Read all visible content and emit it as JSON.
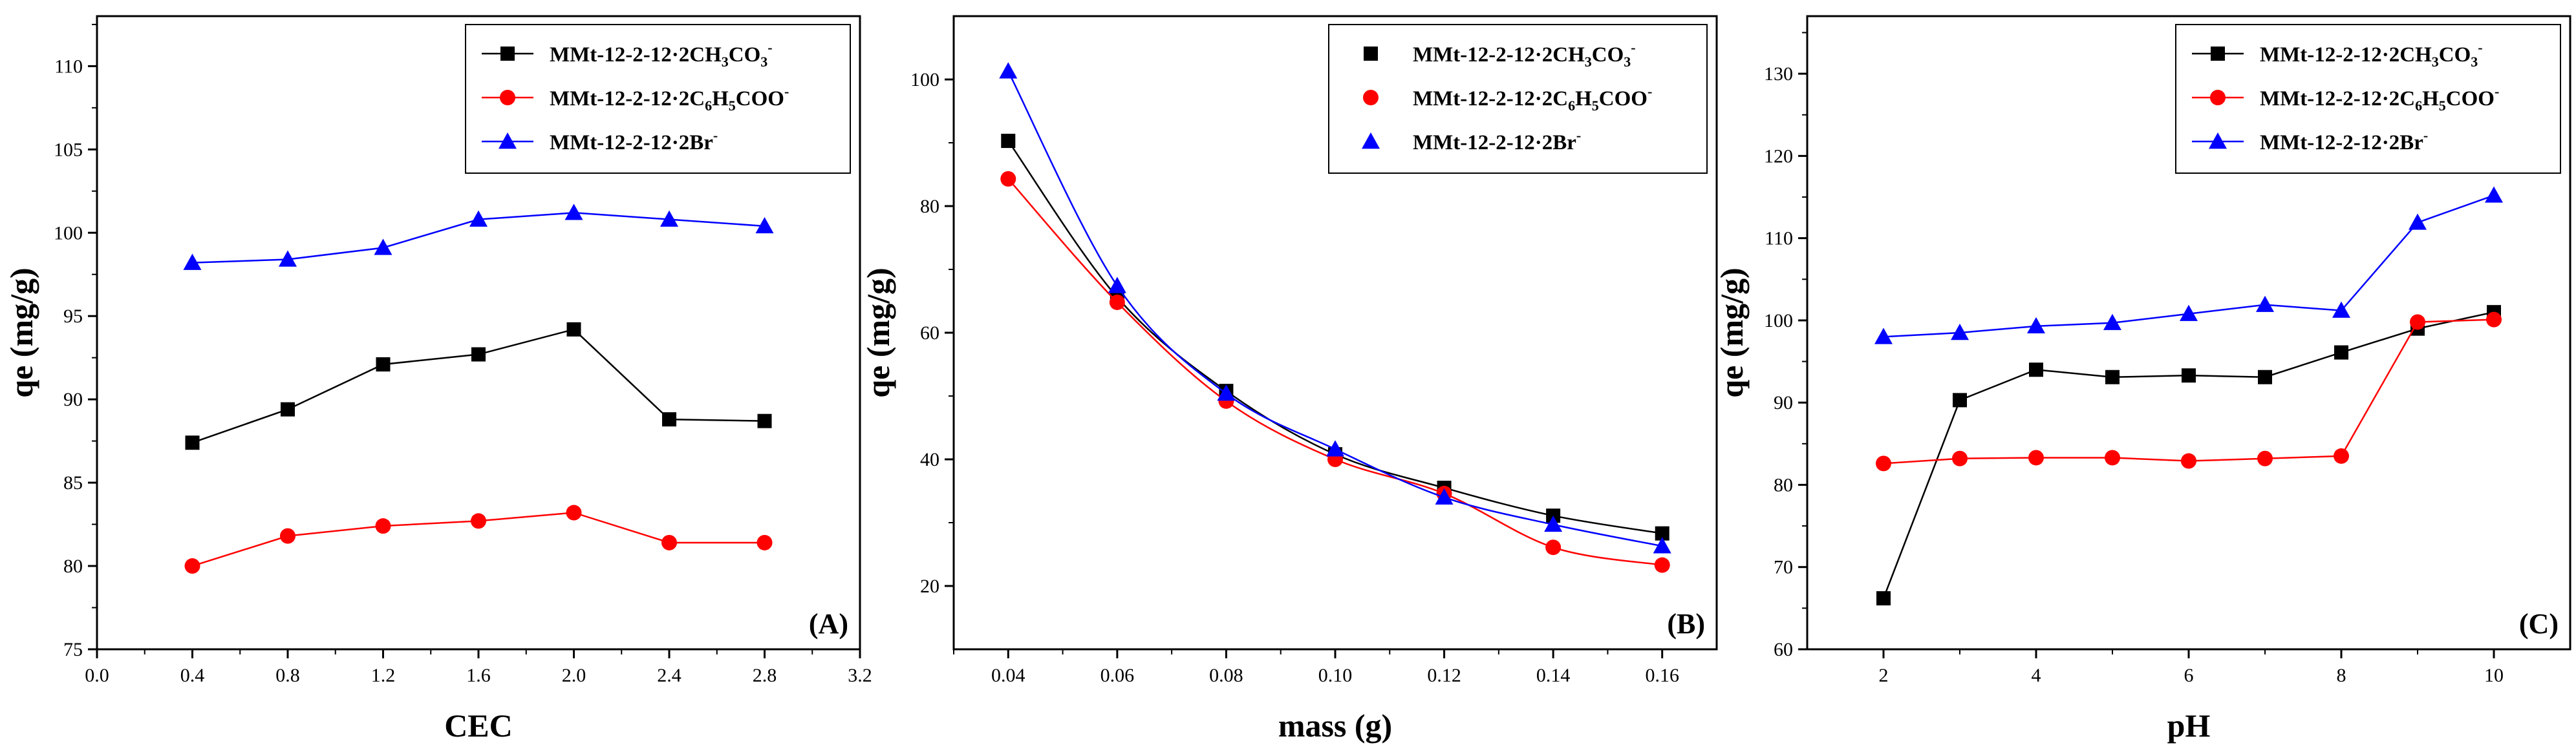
{
  "chart_data": [
    {
      "type": "line",
      "panel_label": "(A)",
      "xlabel": "CEC",
      "ylabel": "qe (mg/g)",
      "xlim": [
        0.0,
        3.2
      ],
      "ylim": [
        75,
        113
      ],
      "xticks": [
        0.0,
        0.4,
        0.8,
        1.2,
        1.6,
        2.0,
        2.4,
        2.8,
        3.2
      ],
      "xtick_labels": [
        "0.0",
        "0.4",
        "0.8",
        "1.2",
        "1.6",
        "2.0",
        "2.4",
        "2.8",
        "3.2"
      ],
      "yticks": [
        75,
        80,
        85,
        90,
        95,
        100,
        105,
        110
      ],
      "ytick_labels": [
        "75",
        "80",
        "85",
        "90",
        "95",
        "100",
        "105",
        "110"
      ],
      "legend_position": "top-right",
      "series": [
        {
          "name": "MMt-12-2-12·2CH3CO3-",
          "legend": {
            "main": "MMt-12-2-12·2CH",
            "sub1": "3",
            "mid": "CO",
            "sub2": "3",
            "sup": "-"
          },
          "color": "#000000",
          "marker": "square",
          "line": "straight",
          "x": [
            0.4,
            0.8,
            1.2,
            1.6,
            2.0,
            2.4,
            2.8
          ],
          "values": [
            87.4,
            89.4,
            92.1,
            92.7,
            94.2,
            88.8,
            88.7
          ]
        },
        {
          "name": "MMt-12-2-12·2C6H5COO-",
          "legend": {
            "main": "MMt-12-2-12·2C",
            "sub1": "6",
            "mid": "H",
            "sub2": "5",
            "tail": "COO",
            "sup": "-"
          },
          "color": "#ff0000",
          "marker": "circle",
          "line": "straight",
          "x": [
            0.4,
            0.8,
            1.2,
            1.6,
            2.0,
            2.4,
            2.8
          ],
          "values": [
            80.0,
            81.8,
            82.4,
            82.7,
            83.2,
            81.4,
            81.4
          ]
        },
        {
          "name": "MMt-12-2-12·2Br-",
          "legend": {
            "main": "MMt-12-2-12·2Br",
            "sup": "-"
          },
          "color": "#0000ff",
          "marker": "triangle",
          "line": "straight",
          "x": [
            0.4,
            0.8,
            1.2,
            1.6,
            2.0,
            2.4,
            2.8
          ],
          "values": [
            98.2,
            98.4,
            99.1,
            100.8,
            101.2,
            100.8,
            100.4
          ]
        }
      ]
    },
    {
      "type": "scatter",
      "panel_label": "(B)",
      "xlabel": "mass (g)",
      "ylabel": "qe (mg/g)",
      "xlim": [
        0.03,
        0.17
      ],
      "ylim": [
        10,
        110
      ],
      "xticks": [
        0.04,
        0.06,
        0.08,
        0.1,
        0.12,
        0.14,
        0.16
      ],
      "xtick_labels": [
        "0.04",
        "0.06",
        "0.08",
        "0.10",
        "0.12",
        "0.14",
        "0.16"
      ],
      "yticks": [
        20,
        40,
        60,
        80,
        100
      ],
      "ytick_labels": [
        "20",
        "40",
        "60",
        "80",
        "100"
      ],
      "legend_position": "top-right",
      "series": [
        {
          "name": "MMt-12-2-12·2CH3CO3-",
          "legend": {
            "main": "MMt-12-2-12·2CH",
            "sub1": "3",
            "mid": "CO",
            "sub2": "3",
            "sup": "-"
          },
          "color": "#000000",
          "marker": "square",
          "line": "smooth",
          "x": [
            0.04,
            0.06,
            0.08,
            0.1,
            0.12,
            0.14,
            0.16
          ],
          "values": [
            90.3,
            65.6,
            50.8,
            40.8,
            35.5,
            31.1,
            28.3
          ]
        },
        {
          "name": "MMt-12-2-12·2C6H5COO-",
          "legend": {
            "main": "MMt-12-2-12·2C",
            "sub1": "6",
            "mid": "H",
            "sub2": "5",
            "tail": "COO",
            "sup": "-"
          },
          "color": "#ff0000",
          "marker": "circle",
          "line": "smooth",
          "x": [
            0.04,
            0.06,
            0.08,
            0.1,
            0.12,
            0.14,
            0.16
          ],
          "values": [
            84.3,
            64.8,
            49.2,
            40.0,
            34.6,
            26.1,
            23.3
          ]
        },
        {
          "name": "MMt-12-2-12·2Br-",
          "legend": {
            "main": "MMt-12-2-12·2Br",
            "sup": "-"
          },
          "color": "#0000ff",
          "marker": "triangle",
          "line": "smooth",
          "x": [
            0.04,
            0.06,
            0.08,
            0.1,
            0.12,
            0.14,
            0.16
          ],
          "values": [
            101.3,
            67.4,
            50.4,
            41.6,
            34.0,
            29.7,
            26.3
          ]
        }
      ]
    },
    {
      "type": "line",
      "panel_label": "(C)",
      "xlabel": "pH",
      "ylabel": "qe (mg/g)",
      "xlim": [
        1,
        11
      ],
      "ylim": [
        60,
        137
      ],
      "xticks": [
        2,
        4,
        6,
        8,
        10
      ],
      "xtick_labels": [
        "2",
        "4",
        "6",
        "8",
        "10"
      ],
      "yticks": [
        60,
        70,
        80,
        90,
        100,
        110,
        120,
        130
      ],
      "ytick_labels": [
        "60",
        "70",
        "80",
        "90",
        "100",
        "110",
        "120",
        "130"
      ],
      "legend_position": "top-right",
      "series": [
        {
          "name": "MMt-12-2-12·2CH3CO3-",
          "legend": {
            "main": "MMt-12-2-12·2CH",
            "sub1": "3",
            "mid": "CO",
            "sub2": "3",
            "sup": "-"
          },
          "color": "#000000",
          "marker": "square",
          "line": "straight",
          "x": [
            2,
            3,
            4,
            5,
            6,
            7,
            8,
            9,
            10
          ],
          "values": [
            66.2,
            90.3,
            94.0,
            93.1,
            93.3,
            93.1,
            96.1,
            99.0,
            101.0
          ]
        },
        {
          "name": "MMt-12-2-12·2C6H5COO-",
          "legend": {
            "main": "MMt-12-2-12·2C",
            "sub1": "6",
            "mid": "H",
            "sub2": "5",
            "tail": "COO",
            "sup": "-"
          },
          "color": "#ff0000",
          "marker": "circle",
          "line": "straight",
          "x": [
            2,
            3,
            4,
            5,
            6,
            7,
            8,
            9,
            10
          ],
          "values": [
            82.6,
            83.2,
            83.3,
            83.3,
            82.9,
            83.2,
            83.5,
            99.8,
            100.1
          ]
        },
        {
          "name": "MMt-12-2-12·2Br-",
          "legend": {
            "main": "MMt-12-2-12·2Br",
            "sup": "-"
          },
          "color": "#0000ff",
          "marker": "triangle",
          "line": "straight",
          "x": [
            2,
            3,
            4,
            5,
            6,
            7,
            8,
            9,
            10
          ],
          "values": [
            98.0,
            98.5,
            99.3,
            99.7,
            100.8,
            101.9,
            101.2,
            111.9,
            115.2
          ]
        }
      ]
    }
  ]
}
